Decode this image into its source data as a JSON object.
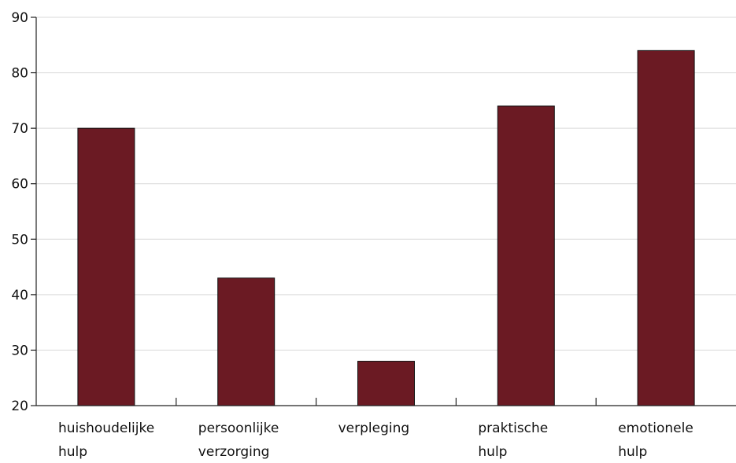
{
  "chart_data": {
    "type": "bar",
    "categories": [
      [
        "huishoudelijke",
        "hulp"
      ],
      [
        "persoonlijke",
        "verzorging"
      ],
      [
        "verpleging"
      ],
      [
        "praktische",
        "hulp"
      ],
      [
        "emotionele",
        "hulp"
      ]
    ],
    "values": [
      70,
      43,
      28,
      74,
      84
    ],
    "ylim": [
      20,
      90
    ],
    "yticks": [
      20,
      30,
      40,
      50,
      60,
      70,
      80,
      90
    ],
    "title": "",
    "xlabel": "",
    "ylabel": "",
    "grid": true,
    "bar_color": "#6b1a23",
    "grid_color": "#d9d9d9",
    "axis_color": "#222222"
  }
}
